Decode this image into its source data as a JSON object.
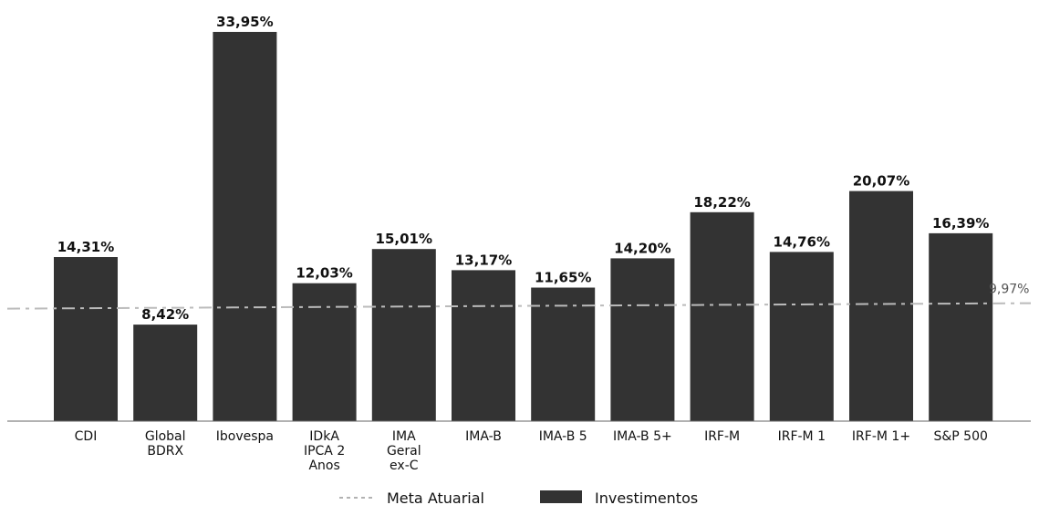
{
  "chart_data": {
    "type": "bar",
    "categories": [
      "CDI",
      "Global\nBDRX",
      "Ibovespa",
      "IDkA\nIPCA 2\nAnos",
      "IMA\nGeral\nex-C",
      "IMA-B",
      "IMA-B 5",
      "IMA-B 5+",
      "IRF-M",
      "IRF-M 1",
      "IRF-M 1+",
      "S&P 500"
    ],
    "series": [
      {
        "name": "Investimentos",
        "values": [
          14.31,
          8.42,
          33.95,
          12.03,
          15.01,
          13.17,
          11.65,
          14.2,
          18.22,
          14.76,
          20.07,
          16.39
        ],
        "labels": [
          "14,31%",
          "8,42%",
          "33,95%",
          "12,03%",
          "15,01%",
          "13,17%",
          "11,65%",
          "14,20%",
          "18,22%",
          "14,76%",
          "20,07%",
          "16,39%"
        ],
        "color": "#333333"
      }
    ],
    "reference_line": {
      "name": "Meta Atuarial",
      "value": 9.97,
      "label": "9,97%",
      "color": "#bbbbbb"
    },
    "ylim": [
      0,
      34
    ],
    "grid": false,
    "legend": "bottom-center",
    "title": "",
    "xlabel": "",
    "ylabel": ""
  },
  "legend": {
    "meta_label": "Meta Atuarial",
    "investimentos_label": "Investimentos"
  }
}
